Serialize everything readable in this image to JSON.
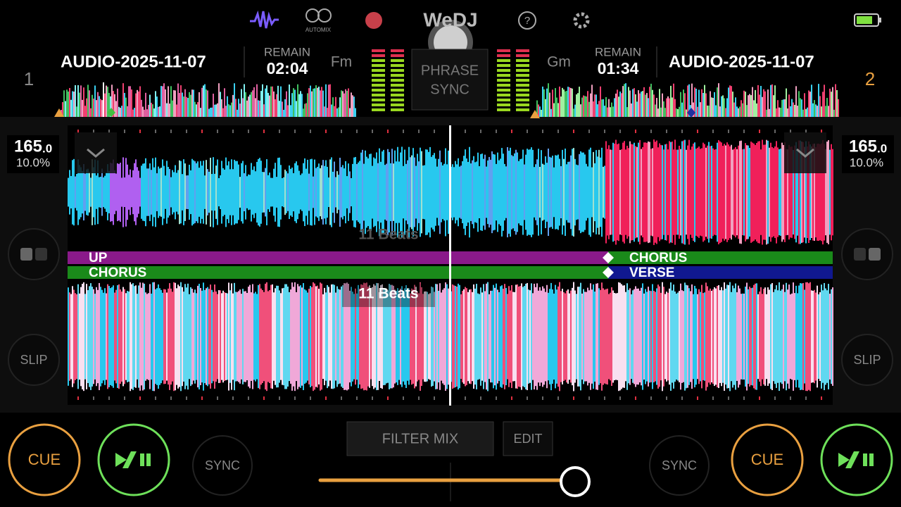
{
  "header": {
    "logo": "WeDJ",
    "automix": "AUTOMIX",
    "phrase_sync": [
      "PHRASE",
      "SYNC"
    ]
  },
  "decks": [
    {
      "number": "1",
      "track": "AUDIO-2025-11-07",
      "remain_label": "REMAIN",
      "remain": "02:04",
      "key": "Fm",
      "bpm": "165",
      "bpm_decimal": ".0",
      "pitch": "10.0%",
      "slip": "SLIP",
      "cue": "CUE",
      "sync": "SYNC"
    },
    {
      "number": "2",
      "track": "AUDIO-2025-11-07",
      "remain_label": "REMAIN",
      "remain": "01:34",
      "key": "Gm",
      "bpm": "165",
      "bpm_decimal": ".0",
      "pitch": "10.0%",
      "slip": "SLIP",
      "cue": "CUE",
      "sync": "SYNC"
    }
  ],
  "waveform": {
    "upper_beats": "11 Beats",
    "lower_beats": "11 Beats",
    "upper_phrases": [
      "UP",
      "CHORUS"
    ],
    "lower_phrases": [
      "CHORUS",
      "VERSE"
    ]
  },
  "mixer": {
    "filter_mix": "FILTER MIX",
    "edit": "EDIT"
  }
}
